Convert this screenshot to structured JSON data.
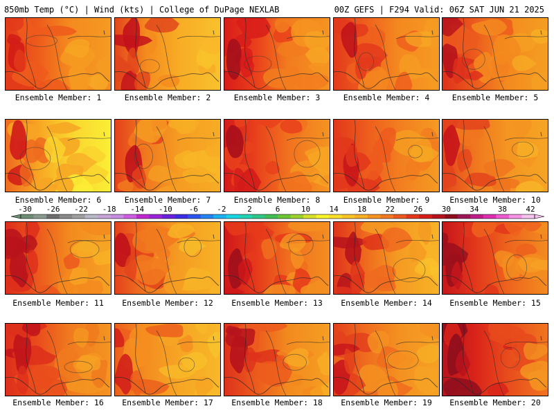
{
  "header": {
    "left_title": "850mb Temp (°C) | Wind (kts) | College of DuPage NEXLAB",
    "right_title": "00Z GEFS | F294 Valid: 06Z SAT JUN 21 2025"
  },
  "panels": [
    {
      "label": "Ensemble Member: 1",
      "palette": [
        "#d11c17",
        "#e23b1a",
        "#ee5a1c",
        "#f48a1f",
        "#f59b22",
        "#f6a824"
      ]
    },
    {
      "label": "Ensemble Member: 2",
      "palette": [
        "#c3121b",
        "#e2461c",
        "#f58c1f",
        "#f8ac25",
        "#f9c22c",
        "#f9b52a"
      ]
    },
    {
      "label": "Ensemble Member: 3",
      "palette": [
        "#a4101c",
        "#d81c1a",
        "#ea401b",
        "#f27c1f",
        "#f69421",
        "#f7a524"
      ]
    },
    {
      "label": "Ensemble Member: 4",
      "palette": [
        "#c0141b",
        "#e33a1c",
        "#ef5f1d",
        "#f48820",
        "#f69b22",
        "#f7a924"
      ]
    },
    {
      "label": "Ensemble Member: 5",
      "palette": [
        "#b7141c",
        "#de311b",
        "#ec5a1d",
        "#f38a1f",
        "#f59f22",
        "#f7ae25"
      ]
    },
    {
      "label": "Ensemble Member: 6",
      "palette": [
        "#d01a19",
        "#ee6a1e",
        "#f7a423",
        "#f9d42e",
        "#fbef36",
        "#f7a826"
      ]
    },
    {
      "label": "Ensemble Member: 7",
      "palette": [
        "#c0121b",
        "#e4421c",
        "#f1791f",
        "#f59c22",
        "#f7ad25",
        "#f8b727"
      ]
    },
    {
      "label": "Ensemble Member: 8",
      "palette": [
        "#a8101c",
        "#d41a1a",
        "#e9411c",
        "#f1721f",
        "#f59521",
        "#f7a524"
      ]
    },
    {
      "label": "Ensemble Member: 9",
      "palette": [
        "#c8161b",
        "#e2371b",
        "#ed5b1d",
        "#f27c1f",
        "#f59c22",
        "#f7ab25"
      ]
    },
    {
      "label": "Ensemble Member: 10",
      "palette": [
        "#c7151b",
        "#e3431c",
        "#f0761e",
        "#f49421",
        "#f6a524",
        "#f8b527"
      ]
    },
    {
      "label": "Ensemble Member: 11",
      "palette": [
        "#b8131c",
        "#dd2e1b",
        "#ec581d",
        "#f38a1f",
        "#f6a223",
        "#f8b026"
      ]
    },
    {
      "label": "Ensemble Member: 12",
      "palette": [
        "#c0121b",
        "#e4421c",
        "#f1791f",
        "#f59c22",
        "#f8b326",
        "#f8c12b"
      ]
    },
    {
      "label": "Ensemble Member: 13",
      "palette": [
        "#9e0f1c",
        "#cf181a",
        "#e6391b",
        "#f06e1e",
        "#f48f21",
        "#f6a123"
      ]
    },
    {
      "label": "Ensemble Member: 14",
      "palette": [
        "#b6131c",
        "#df341b",
        "#ef6a1e",
        "#f59a22",
        "#f8b427",
        "#f9c22b"
      ]
    },
    {
      "label": "Ensemble Member: 15",
      "palette": [
        "#9b0f1c",
        "#c8161b",
        "#e2361b",
        "#ee621d",
        "#f38d20",
        "#f6a023"
      ]
    },
    {
      "label": "Ensemble Member: 16",
      "palette": [
        "#c0141b",
        "#dd2f1b",
        "#ea4c1c",
        "#f07a1f",
        "#f49521",
        "#f6a524"
      ]
    },
    {
      "label": "Ensemble Member: 17",
      "palette": [
        "#d2201a",
        "#ec5f1d",
        "#f48e20",
        "#f6a524",
        "#f8b828",
        "#f8c22b"
      ]
    },
    {
      "label": "Ensemble Member: 18",
      "palette": [
        "#b6131c",
        "#de321b",
        "#ec5b1d",
        "#f38a1f",
        "#f69f22",
        "#f7ae25"
      ]
    },
    {
      "label": "Ensemble Member: 19",
      "palette": [
        "#c8161b",
        "#e3401c",
        "#ef6c1e",
        "#f49021",
        "#f6a223",
        "#f7b025"
      ]
    },
    {
      "label": "Ensemble Member: 20",
      "palette": [
        "#8e0e1d",
        "#b8131c",
        "#d9231a",
        "#e84a1c",
        "#f0771f",
        "#f49521"
      ]
    }
  ],
  "colorbar": {
    "ticks": [
      "-30",
      "-26",
      "-22",
      "-18",
      "-14",
      "-10",
      "-6",
      "-2",
      "2",
      "6",
      "10",
      "14",
      "18",
      "22",
      "26",
      "30",
      "34",
      "38",
      "42"
    ],
    "colors": [
      "#6f8c75",
      "#8a9a8e",
      "#6d6d6d",
      "#8a8a8a",
      "#a0a0a0",
      "#b9b9c8",
      "#c8a5d8",
      "#c98ee4",
      "#d05ee4",
      "#c228cf",
      "#9a22d8",
      "#6a22e0",
      "#3a2ee6",
      "#2b55f0",
      "#2384f4",
      "#1cb2f2",
      "#18d6e6",
      "#22d4b4",
      "#2dc78a",
      "#3fbf54",
      "#6ac631",
      "#9bd22c",
      "#d7e12c",
      "#f8f52b",
      "#fbdf2a",
      "#fac527",
      "#f8ae25",
      "#f69421",
      "#f27a1f",
      "#ec581d",
      "#e4371b",
      "#d61f1a",
      "#b8131c",
      "#8e0e1d",
      "#9e1657",
      "#c01c8a",
      "#de2fb2",
      "#f05ad2",
      "#f792e6",
      "#f6c3ef"
    ],
    "range": [
      -30,
      42
    ]
  }
}
